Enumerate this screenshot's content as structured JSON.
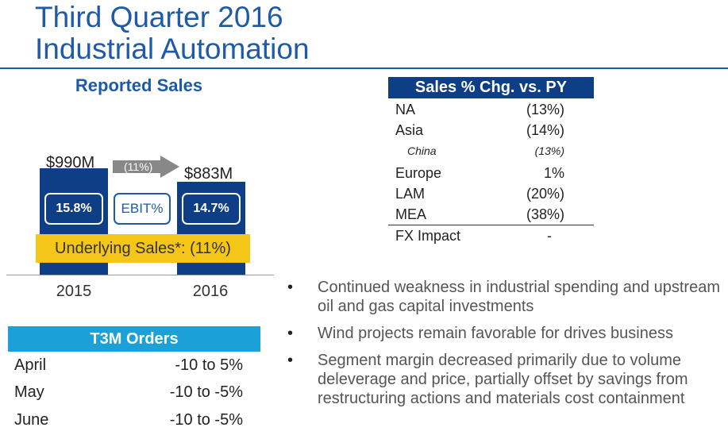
{
  "title": {
    "line1": "Third Quarter 2016",
    "line2": "Industrial Automation"
  },
  "reported_sales": {
    "heading": "Reported Sales",
    "bars": [
      {
        "year": "2015",
        "label": "$990M",
        "ebit": "15.8%"
      },
      {
        "year": "2016",
        "label": "$883M",
        "ebit": "14.7%"
      }
    ],
    "change": "(11%)",
    "ebit_label": "EBIT%",
    "underlying": "Underlying Sales*: (11%)"
  },
  "chart_data": {
    "type": "bar",
    "categories": [
      "2015",
      "2016"
    ],
    "values": [
      990,
      883
    ],
    "title": "Reported Sales",
    "ylabel": "",
    "xlabel": ""
  },
  "sales_table": {
    "header": "Sales % Chg. vs. PY",
    "rows": [
      {
        "region": "NA",
        "value": "(13%)"
      },
      {
        "region": "Asia",
        "value": "(14%)"
      },
      {
        "region": "China",
        "value": "(13%)",
        "sub": true
      },
      {
        "region": "Europe",
        "value": "1%"
      },
      {
        "region": "LAM",
        "value": "(20%)"
      },
      {
        "region": "MEA",
        "value": "(38%)"
      },
      {
        "region": "FX Impact",
        "value": "-"
      }
    ]
  },
  "orders": {
    "header": "T3M Orders",
    "rows": [
      {
        "month": "April",
        "value": "-10 to 5%"
      },
      {
        "month": "May",
        "value": "-10 to -5%"
      },
      {
        "month": "June",
        "value": "-10 to -5%"
      }
    ]
  },
  "bullets": [
    "Continued weakness in industrial spending and upstream oil and gas capital investments",
    "Wind projects remain favorable for drives business",
    "Segment margin decreased primarily due to volume deleverage and price, partially offset by savings from restructuring actions and materials cost containment"
  ],
  "colors": {
    "navy": "#0e3f86",
    "title_blue": "#1f5aa6",
    "yellow": "#f5c518",
    "cyan": "#1ba1d7"
  }
}
